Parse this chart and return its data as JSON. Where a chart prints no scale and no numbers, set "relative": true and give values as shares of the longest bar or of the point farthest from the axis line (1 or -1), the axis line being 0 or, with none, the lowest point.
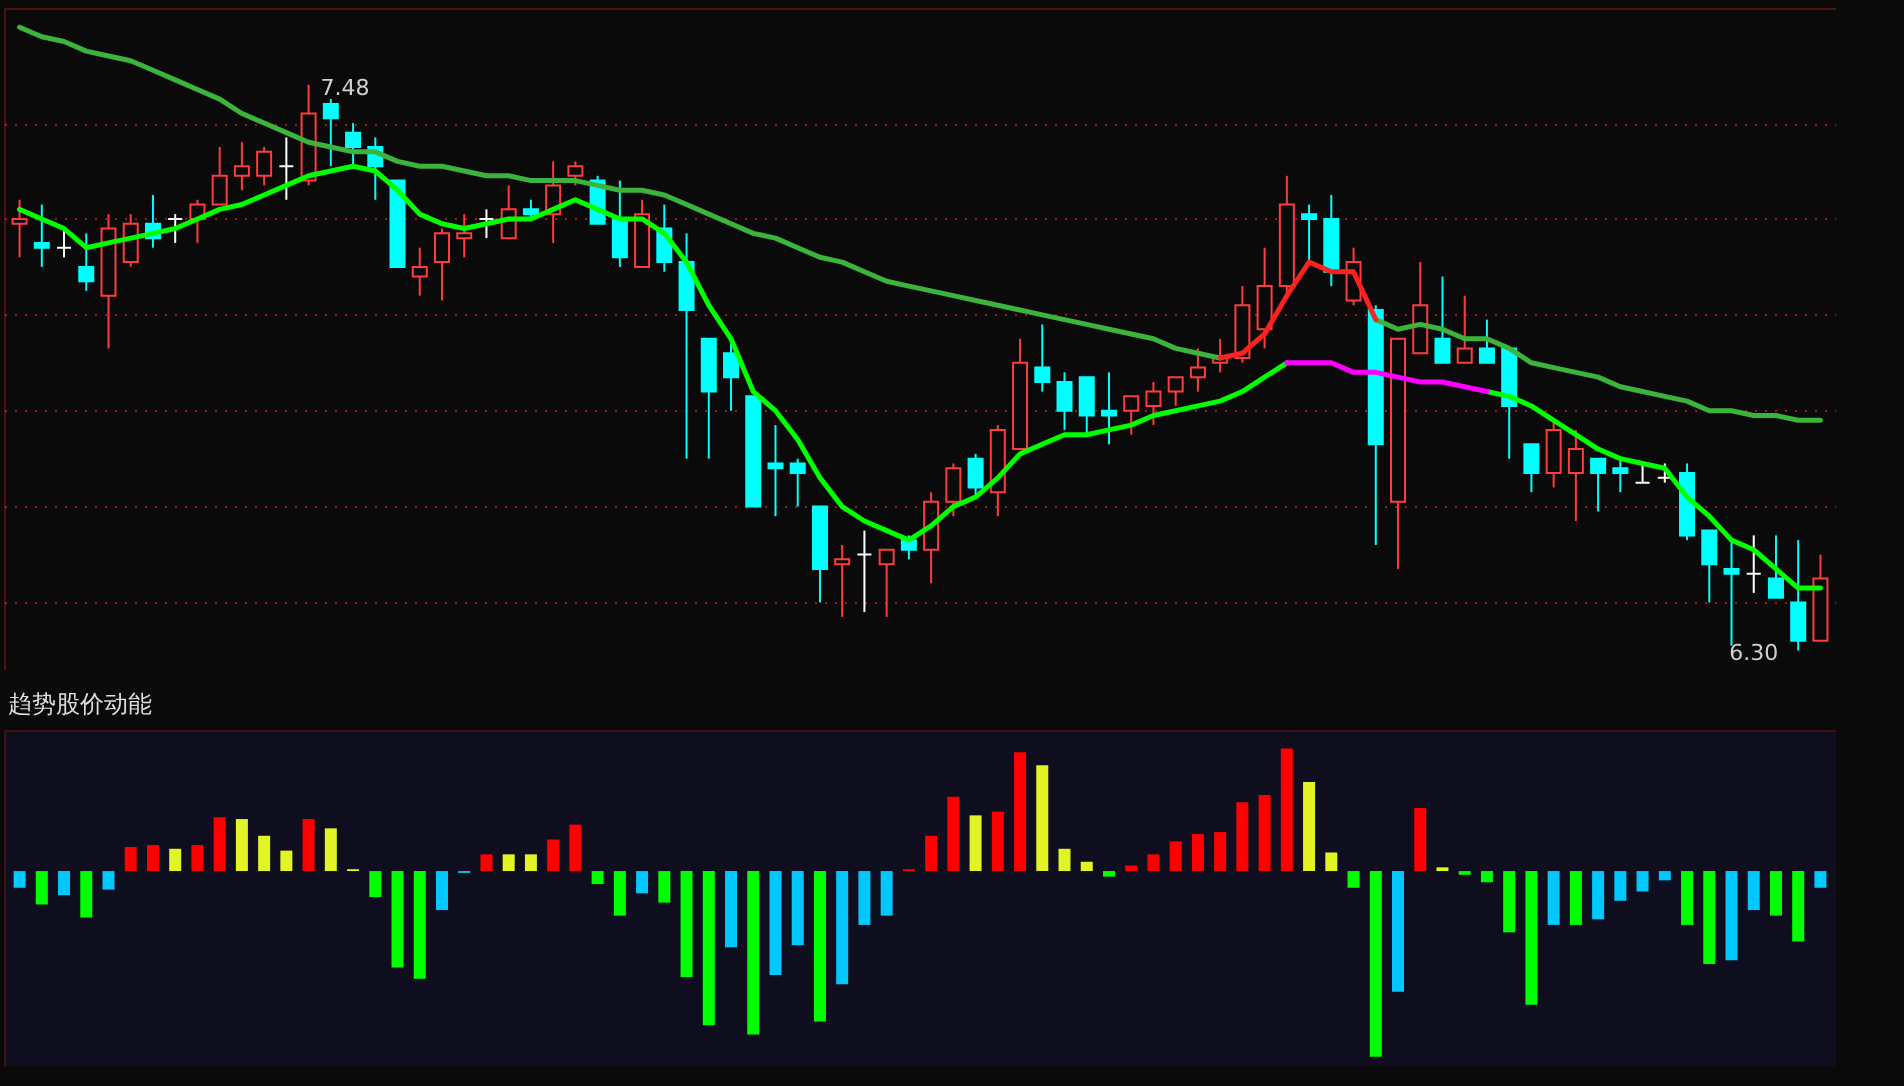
{
  "chart_data": [
    {
      "type": "candlestick",
      "categories": [
        null,
        null,
        null,
        null,
        null,
        null,
        null,
        null,
        null,
        null,
        null,
        null,
        null,
        null,
        null,
        null,
        null,
        null,
        null,
        null,
        null,
        null,
        null,
        null,
        null,
        null,
        null,
        null,
        null,
        null,
        null,
        null,
        null,
        null,
        null,
        null,
        null,
        null,
        null,
        null,
        null,
        null,
        null,
        null,
        null,
        null,
        null,
        null,
        null,
        null,
        null,
        null,
        null,
        null,
        null,
        null,
        null,
        null,
        null,
        null,
        null,
        null,
        null,
        null,
        null,
        null,
        null,
        null,
        null,
        null,
        null,
        null,
        null,
        null,
        null,
        null,
        null,
        null,
        null,
        null,
        null,
        null
      ],
      "ohlc": [
        [
          7.19,
          7.24,
          7.12,
          7.2
        ],
        [
          7.15,
          7.23,
          7.1,
          7.14
        ],
        [
          7.14,
          7.18,
          7.12,
          7.14
        ],
        [
          7.1,
          7.17,
          7.05,
          7.07
        ],
        [
          7.04,
          7.21,
          6.93,
          7.18
        ],
        [
          7.11,
          7.21,
          7.1,
          7.19
        ],
        [
          7.19,
          7.25,
          7.14,
          7.16
        ],
        [
          7.2,
          7.21,
          7.15,
          7.2
        ],
        [
          7.2,
          7.24,
          7.15,
          7.23
        ],
        [
          7.23,
          7.35,
          7.23,
          7.29
        ],
        [
          7.29,
          7.36,
          7.26,
          7.31
        ],
        [
          7.29,
          7.35,
          7.27,
          7.34
        ],
        [
          7.31,
          7.37,
          7.24,
          7.31
        ],
        [
          7.28,
          7.48,
          7.27,
          7.42
        ],
        [
          7.44,
          7.45,
          7.31,
          7.41
        ],
        [
          7.38,
          7.4,
          7.31,
          7.35
        ],
        [
          7.35,
          7.37,
          7.24,
          7.31
        ],
        [
          7.28,
          7.28,
          7.1,
          7.1
        ],
        [
          7.08,
          7.14,
          7.04,
          7.1
        ],
        [
          7.11,
          7.18,
          7.03,
          7.17
        ],
        [
          7.16,
          7.21,
          7.12,
          7.17
        ],
        [
          7.2,
          7.22,
          7.16,
          7.2
        ],
        [
          7.16,
          7.27,
          7.16,
          7.22
        ],
        [
          7.22,
          7.24,
          7.2,
          7.21
        ],
        [
          7.21,
          7.32,
          7.15,
          7.27
        ],
        [
          7.29,
          7.32,
          7.27,
          7.31
        ],
        [
          7.28,
          7.29,
          7.19,
          7.19
        ],
        [
          7.2,
          7.28,
          7.1,
          7.12
        ],
        [
          7.1,
          7.24,
          7.1,
          7.21
        ],
        [
          7.18,
          7.23,
          7.09,
          7.11
        ],
        [
          7.11,
          7.17,
          6.7,
          7.01
        ],
        [
          6.95,
          6.95,
          6.7,
          6.84
        ],
        [
          6.92,
          6.94,
          6.8,
          6.87
        ],
        [
          6.83,
          6.83,
          6.6,
          6.6
        ],
        [
          6.69,
          6.77,
          6.58,
          6.68
        ],
        [
          6.69,
          6.7,
          6.6,
          6.67
        ],
        [
          6.6,
          6.6,
          6.4,
          6.47
        ],
        [
          6.48,
          6.52,
          6.37,
          6.49
        ],
        [
          6.5,
          6.55,
          6.38,
          6.5
        ],
        [
          6.48,
          6.51,
          6.37,
          6.51
        ],
        [
          6.53,
          6.54,
          6.49,
          6.51
        ],
        [
          6.51,
          6.63,
          6.44,
          6.61
        ],
        [
          6.61,
          6.69,
          6.58,
          6.68
        ],
        [
          6.7,
          6.71,
          6.62,
          6.64
        ],
        [
          6.63,
          6.77,
          6.58,
          6.76
        ],
        [
          6.72,
          6.95,
          6.72,
          6.9
        ],
        [
          6.89,
          6.98,
          6.84,
          6.86
        ],
        [
          6.86,
          6.88,
          6.76,
          6.8
        ],
        [
          6.87,
          6.87,
          6.75,
          6.79
        ],
        [
          6.8,
          6.88,
          6.73,
          6.79
        ],
        [
          6.8,
          6.83,
          6.75,
          6.83
        ],
        [
          6.81,
          6.86,
          6.77,
          6.84
        ],
        [
          6.84,
          6.87,
          6.81,
          6.87
        ],
        [
          6.87,
          6.93,
          6.84,
          6.89
        ],
        [
          6.9,
          6.95,
          6.88,
          6.91
        ],
        [
          6.91,
          7.06,
          6.9,
          7.02
        ],
        [
          6.97,
          7.14,
          6.93,
          7.06
        ],
        [
          7.06,
          7.29,
          7.04,
          7.23
        ],
        [
          7.21,
          7.23,
          7.11,
          7.2
        ],
        [
          7.2,
          7.25,
          7.06,
          7.09
        ],
        [
          7.03,
          7.14,
          7.02,
          7.11
        ],
        [
          7.01,
          7.02,
          6.52,
          6.73
        ],
        [
          6.61,
          6.95,
          6.47,
          6.95
        ],
        [
          6.92,
          7.11,
          6.92,
          7.02
        ],
        [
          6.95,
          7.08,
          6.9,
          6.9
        ],
        [
          6.9,
          7.04,
          6.9,
          6.93
        ],
        [
          6.93,
          6.99,
          6.9,
          6.9
        ],
        [
          6.93,
          6.93,
          6.7,
          6.81
        ],
        [
          6.73,
          6.73,
          6.63,
          6.67
        ],
        [
          6.67,
          6.78,
          6.64,
          6.76
        ],
        [
          6.67,
          6.76,
          6.57,
          6.72
        ],
        [
          6.7,
          6.7,
          6.59,
          6.67
        ],
        [
          6.68,
          6.7,
          6.63,
          6.67
        ],
        [
          6.65,
          6.69,
          6.65,
          6.65
        ],
        [
          6.66,
          6.69,
          6.65,
          6.66
        ],
        [
          6.67,
          6.69,
          6.53,
          6.54
        ],
        [
          6.55,
          6.55,
          6.4,
          6.48
        ],
        [
          6.47,
          6.53,
          6.31,
          6.46
        ],
        [
          6.46,
          6.54,
          6.42,
          6.46
        ],
        [
          6.45,
          6.54,
          6.41,
          6.41
        ],
        [
          6.4,
          6.53,
          6.3,
          6.32
        ],
        [
          6.32,
          6.5,
          6.32,
          6.45
        ]
      ],
      "colors": [
        "#ff3c3c",
        "#00ffff",
        "#ffffff",
        "#00ffff",
        "#ff3c3c",
        "#ff3c3c",
        "#00ffff",
        "#ffffff",
        "#ff3c3c",
        "#ff3c3c",
        "#ff3c3c",
        "#ff3c3c",
        "#ffffff",
        "#ff3c3c",
        "#00ffff",
        "#00ffff",
        "#00ffff",
        "#00ffff",
        "#ff3c3c",
        "#ff3c3c",
        "#ff3c3c",
        "#ffffff",
        "#ff3c3c",
        "#00ffff",
        "#ff3c3c",
        "#ff3c3c",
        "#00ffff",
        "#00ffff",
        "#ff3c3c",
        "#00ffff",
        "#00ffff",
        "#00ffff",
        "#00ffff",
        "#00ffff",
        "#00ffff",
        "#00ffff",
        "#00ffff",
        "#ff3c3c",
        "#ffffff",
        "#ff3c3c",
        "#00ffff",
        "#ff3c3c",
        "#ff3c3c",
        "#00ffff",
        "#ff3c3c",
        "#ff3c3c",
        "#00ffff",
        "#00ffff",
        "#00ffff",
        "#00ffff",
        "#ff3c3c",
        "#ff3c3c",
        "#ff3c3c",
        "#ff3c3c",
        "#ff3c3c",
        "#ff3c3c",
        "#ff3c3c",
        "#ff3c3c",
        "#00ffff",
        "#00ffff",
        "#ff3c3c",
        "#00ffff",
        "#ff3c3c",
        "#ff3c3c",
        "#00ffff",
        "#ff3c3c",
        "#00ffff",
        "#00ffff",
        "#00ffff",
        "#ff3c3c",
        "#ff3c3c",
        "#00ffff",
        "#00ffff",
        "#ffffff",
        "#ffffff",
        "#00ffff",
        "#00ffff",
        "#00ffff",
        "#ffffff",
        "#00ffff",
        "#00ffff",
        "#ff3c3c"
      ],
      "series": [
        {
          "type": "line",
          "color": "#3cb43c",
          "values": [
            7.6,
            7.58,
            7.57,
            7.55,
            7.54,
            7.53,
            7.51,
            7.49,
            7.47,
            7.45,
            7.42,
            7.4,
            7.38,
            7.36,
            7.35,
            7.34,
            7.34,
            7.32,
            7.31,
            7.31,
            7.3,
            7.29,
            7.29,
            7.28,
            7.28,
            7.28,
            7.27,
            7.26,
            7.26,
            7.25,
            7.23,
            7.21,
            7.19,
            7.17,
            7.16,
            7.14,
            7.12,
            7.11,
            7.09,
            7.07,
            7.06,
            7.05,
            7.04,
            7.03,
            7.02,
            7.01,
            7.0,
            6.99,
            6.98,
            6.97,
            6.96,
            6.95,
            6.93,
            6.92,
            6.91,
            null,
            null,
            null,
            null,
            null,
            null,
            6.99,
            6.97,
            6.98,
            6.97,
            6.95,
            6.95,
            6.93,
            6.9,
            6.89,
            6.88,
            6.87,
            6.85,
            6.84,
            6.83,
            6.82,
            6.8,
            6.8,
            6.79,
            6.79,
            6.78,
            6.78
          ]
        },
        {
          "type": "line",
          "color": "#ff2020",
          "values": [
            null,
            null,
            null,
            null,
            null,
            null,
            null,
            null,
            null,
            null,
            null,
            null,
            null,
            null,
            null,
            null,
            null,
            null,
            null,
            null,
            null,
            null,
            null,
            null,
            null,
            null,
            null,
            null,
            null,
            null,
            null,
            null,
            null,
            null,
            null,
            null,
            null,
            null,
            null,
            null,
            null,
            null,
            null,
            null,
            null,
            null,
            null,
            null,
            null,
            null,
            null,
            null,
            null,
            null,
            6.91,
            6.92,
            6.96,
            7.04,
            7.11,
            7.09,
            7.09,
            6.99,
            null,
            null,
            null,
            null,
            null,
            null,
            null,
            null,
            null,
            null,
            null,
            null,
            null,
            null,
            null,
            null,
            null,
            null,
            null,
            null
          ]
        },
        {
          "type": "line",
          "color": "#00ff00",
          "values": [
            7.22,
            7.2,
            7.18,
            7.14,
            7.15,
            7.16,
            7.17,
            7.18,
            7.2,
            7.22,
            7.23,
            7.25,
            7.27,
            7.29,
            7.3,
            7.31,
            7.3,
            7.26,
            7.21,
            7.19,
            7.18,
            7.19,
            7.2,
            7.2,
            7.22,
            7.24,
            7.22,
            7.2,
            7.2,
            7.17,
            7.11,
            7.02,
            6.95,
            6.84,
            6.8,
            6.74,
            6.66,
            6.6,
            6.57,
            6.55,
            6.53,
            6.56,
            6.6,
            6.62,
            6.66,
            6.71,
            6.73,
            6.75,
            6.75,
            6.76,
            6.77,
            6.79,
            6.8,
            6.81,
            6.82,
            6.84,
            6.87,
            6.9,
            null,
            null,
            null,
            null,
            null,
            null,
            null,
            null,
            6.84,
            6.83,
            6.81,
            6.78,
            6.75,
            6.72,
            6.7,
            6.69,
            6.68,
            6.62,
            6.58,
            6.53,
            6.51,
            6.47,
            6.43,
            6.43
          ]
        },
        {
          "type": "line",
          "color": "#ff00ff",
          "values": [
            null,
            null,
            null,
            null,
            null,
            null,
            null,
            null,
            null,
            null,
            null,
            null,
            null,
            null,
            null,
            null,
            null,
            null,
            null,
            null,
            null,
            null,
            null,
            null,
            null,
            null,
            null,
            null,
            null,
            null,
            null,
            null,
            null,
            null,
            null,
            null,
            null,
            null,
            null,
            null,
            null,
            null,
            null,
            null,
            null,
            null,
            null,
            null,
            null,
            null,
            null,
            null,
            null,
            null,
            null,
            null,
            null,
            6.9,
            6.9,
            6.9,
            6.88,
            6.88,
            6.87,
            6.86,
            6.86,
            6.85,
            6.84,
            null,
            null,
            null,
            null,
            null,
            null,
            null,
            null,
            null,
            null,
            null,
            null,
            null,
            null,
            null
          ]
        }
      ],
      "ylim": [
        6.23,
        7.64
      ],
      "yticks": [
        {
          "value": 6.4,
          "label": null
        },
        {
          "value": 6.6,
          "label": null
        },
        {
          "value": 6.8,
          "label": null
        },
        {
          "value": 7.0,
          "label": null
        },
        {
          "value": 7.2,
          "label": null
        },
        {
          "value": 7.4,
          "label": null
        }
      ],
      "grid": "y",
      "annotations": [
        "7.48",
        "6.30"
      ]
    },
    {
      "type": "bar",
      "title": "趋势股价动能",
      "relative": true,
      "categories": [
        null,
        null,
        null,
        null,
        null,
        null,
        null,
        null,
        null,
        null,
        null,
        null,
        null,
        null,
        null,
        null,
        null,
        null,
        null,
        null,
        null,
        null,
        null,
        null,
        null,
        null,
        null,
        null,
        null,
        null,
        null,
        null,
        null,
        null,
        null,
        null,
        null,
        null,
        null,
        null,
        null,
        null,
        null,
        null,
        null,
        null,
        null,
        null,
        null,
        null,
        null,
        null,
        null,
        null,
        null,
        null,
        null,
        null,
        null,
        null,
        null,
        null,
        null,
        null,
        null,
        null,
        null,
        null,
        null,
        null,
        null,
        null,
        null,
        null,
        null,
        null,
        null,
        null,
        null,
        null,
        null,
        null
      ],
      "values": [
        -0.09,
        -0.18,
        -0.13,
        -0.25,
        -0.1,
        0.13,
        0.14,
        0.12,
        0.14,
        0.29,
        0.28,
        0.19,
        0.11,
        0.28,
        0.23,
        0.01,
        -0.14,
        -0.52,
        -0.58,
        -0.21,
        -0.01,
        0.09,
        0.09,
        0.09,
        0.17,
        0.25,
        -0.07,
        -0.24,
        -0.12,
        -0.17,
        -0.57,
        -0.83,
        -0.41,
        -0.88,
        -0.56,
        -0.4,
        -0.81,
        -0.61,
        -0.29,
        -0.24,
        0.01,
        0.19,
        0.4,
        0.3,
        0.32,
        0.64,
        0.57,
        0.12,
        0.05,
        -0.03,
        0.03,
        0.09,
        0.16,
        0.2,
        0.21,
        0.37,
        0.41,
        0.66,
        0.48,
        0.1,
        -0.09,
        -1,
        -0.65,
        0.34,
        0.02,
        -0.02,
        -0.06,
        -0.33,
        -0.72,
        -0.29,
        -0.29,
        -0.26,
        -0.16,
        -0.11,
        -0.05,
        -0.29,
        -0.5,
        -0.48,
        -0.21,
        -0.24,
        -0.38,
        -0.09
      ],
      "colors": [
        "#00c8ff",
        "#00ff00",
        "#00c8ff",
        "#00ff00",
        "#00c8ff",
        "#ff0000",
        "#ff0000",
        "#e1f526",
        "#ff0000",
        "#ff0000",
        "#e1f526",
        "#e1f526",
        "#e1f526",
        "#ff0000",
        "#e1f526",
        "#e1f526",
        "#00ff00",
        "#00ff00",
        "#00ff00",
        "#00c8ff",
        "#00c8ff",
        "#ff0000",
        "#e1f526",
        "#e1f526",
        "#ff0000",
        "#ff0000",
        "#00ff00",
        "#00ff00",
        "#00c8ff",
        "#00ff00",
        "#00ff00",
        "#00ff00",
        "#00c8ff",
        "#00ff00",
        "#00c8ff",
        "#00c8ff",
        "#00ff00",
        "#00c8ff",
        "#00c8ff",
        "#00c8ff",
        "#ff0000",
        "#ff0000",
        "#ff0000",
        "#e1f526",
        "#ff0000",
        "#ff0000",
        "#e1f526",
        "#e1f526",
        "#e1f526",
        "#00ff00",
        "#ff0000",
        "#ff0000",
        "#ff0000",
        "#ff0000",
        "#ff0000",
        "#ff0000",
        "#ff0000",
        "#ff0000",
        "#e1f526",
        "#e1f526",
        "#00ff00",
        "#00ff00",
        "#00c8ff",
        "#ff0000",
        "#e1f526",
        "#00ff00",
        "#00ff00",
        "#00ff00",
        "#00ff00",
        "#00c8ff",
        "#00ff00",
        "#00c8ff",
        "#00c8ff",
        "#00c8ff",
        "#00c8ff",
        "#00ff00",
        "#00ff00",
        "#00c8ff",
        "#00c8ff",
        "#00ff00",
        "#00ff00",
        "#00c8ff"
      ]
    }
  ]
}
